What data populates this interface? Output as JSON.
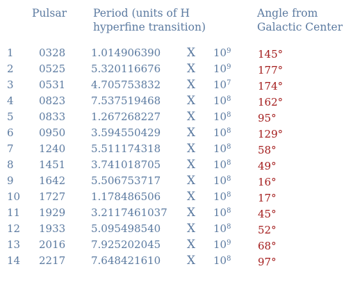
{
  "headers": {
    "pulsar": "Pulsar",
    "period_line1": "Period (units of H",
    "period_line2": "hyperfine transition)",
    "angle_line1": "Angle from",
    "angle_line2": "Galactic Center"
  },
  "colors": {
    "text": "#5b7aa0",
    "angle": "#a31c1c"
  },
  "rows": [
    {
      "index": "1",
      "pulsar": "0328",
      "period": "1.014906390",
      "times": "X",
      "base": "10",
      "exponent": "9",
      "angle": "145°"
    },
    {
      "index": "2",
      "pulsar": "0525",
      "period": "5.320116676",
      "times": "X",
      "base": "10",
      "exponent": "9",
      "angle": "177°"
    },
    {
      "index": "3",
      "pulsar": "0531",
      "period": "4.705753832",
      "times": "X",
      "base": "10",
      "exponent": "7",
      "angle": "174°"
    },
    {
      "index": "4",
      "pulsar": "0823",
      "period": "7.537519468",
      "times": "X",
      "base": "10",
      "exponent": "8",
      "angle": "162°"
    },
    {
      "index": "5",
      "pulsar": "0833",
      "period": "1.267268227",
      "times": "X",
      "base": "10",
      "exponent": "8",
      "angle": "95°"
    },
    {
      "index": "6",
      "pulsar": "0950",
      "period": "3.594550429",
      "times": "X",
      "base": "10",
      "exponent": "8",
      "angle": "129°"
    },
    {
      "index": "7",
      "pulsar": "1240",
      "period": "5.511174318",
      "times": "X",
      "base": "10",
      "exponent": "8",
      "angle": "58°"
    },
    {
      "index": "8",
      "pulsar": "1451",
      "period": "3.741018705",
      "times": "X",
      "base": "10",
      "exponent": "8",
      "angle": "49°"
    },
    {
      "index": "9",
      "pulsar": "1642",
      "period": "5.506753717",
      "times": "X",
      "base": "10",
      "exponent": "8",
      "angle": "16°"
    },
    {
      "index": "10",
      "pulsar": "1727",
      "period": "1.178486506",
      "times": "X",
      "base": "10",
      "exponent": "8",
      "angle": "17°"
    },
    {
      "index": "11",
      "pulsar": "1929",
      "period": "3.2117461037",
      "times": "X",
      "base": "10",
      "exponent": "8",
      "angle": "45°"
    },
    {
      "index": "12",
      "pulsar": "1933",
      "period": "5.095498540",
      "times": "X",
      "base": "10",
      "exponent": "8",
      "angle": "52°"
    },
    {
      "index": "13",
      "pulsar": "2016",
      "period": "7.925202045",
      "times": "X",
      "base": "10",
      "exponent": "9",
      "angle": "68°"
    },
    {
      "index": "14",
      "pulsar": "2217",
      "period": "7.648421610",
      "times": "X",
      "base": "10",
      "exponent": "8",
      "angle": "97°"
    }
  ]
}
